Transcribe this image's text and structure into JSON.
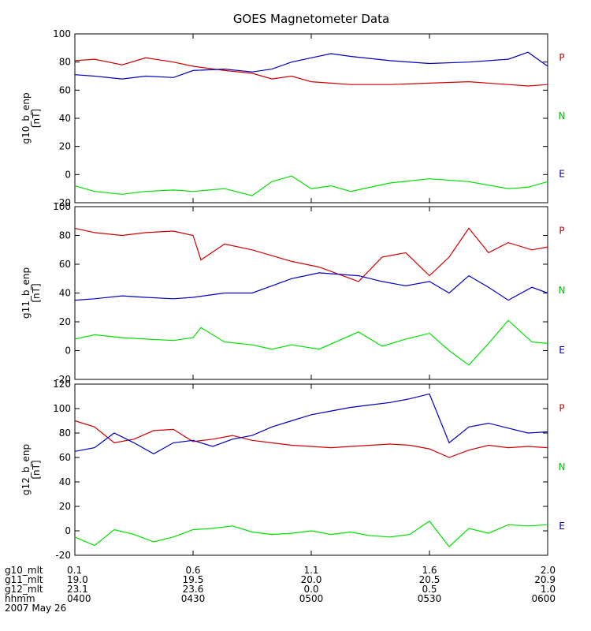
{
  "chart_data": [
    {
      "type": "line",
      "title": "GOES Magnetometer Data",
      "ylabel": "g10_b_enp",
      "yunit": "[nT]",
      "ylim": [
        -20,
        100
      ],
      "yticks": [
        -20,
        0,
        20,
        40,
        60,
        80,
        100
      ],
      "xlim": [
        0,
        120
      ],
      "legend": [
        "P",
        "N",
        "E"
      ],
      "series": [
        {
          "color": "#d00000",
          "x": [
            0,
            5,
            12,
            18,
            25,
            30,
            38,
            45,
            50,
            55,
            60,
            65,
            70,
            80,
            90,
            100,
            110,
            115,
            120
          ],
          "y": [
            81,
            82,
            78,
            83,
            80,
            77,
            74,
            72,
            68,
            70,
            66,
            65,
            64,
            64,
            65,
            66,
            64,
            63,
            64
          ]
        },
        {
          "color": "#0000c0",
          "x": [
            0,
            5,
            12,
            18,
            25,
            30,
            38,
            45,
            50,
            55,
            60,
            65,
            70,
            80,
            90,
            100,
            110,
            115,
            120
          ],
          "y": [
            71,
            70,
            68,
            70,
            69,
            74,
            75,
            73,
            75,
            80,
            83,
            86,
            84,
            81,
            79,
            80,
            82,
            87,
            77
          ]
        },
        {
          "color": "#00e000",
          "x": [
            0,
            5,
            12,
            18,
            25,
            30,
            38,
            45,
            50,
            55,
            60,
            65,
            70,
            80,
            90,
            100,
            110,
            115,
            120
          ],
          "y": [
            -8,
            -12,
            -14,
            -12,
            -11,
            -12,
            -10,
            -15,
            -5,
            -1,
            -10,
            -8,
            -12,
            -6,
            -3,
            -5,
            -10,
            -9,
            -5
          ]
        }
      ]
    },
    {
      "type": "line",
      "ylabel": "g11_b_enp",
      "yunit": "[nT]",
      "ylim": [
        -20,
        100
      ],
      "yticks": [
        -20,
        0,
        20,
        40,
        60,
        80,
        100
      ],
      "xlim": [
        0,
        120
      ],
      "legend": [
        "P",
        "N",
        "E"
      ],
      "series": [
        {
          "color": "#d00000",
          "x": [
            0,
            5,
            12,
            18,
            25,
            30,
            32,
            38,
            45,
            50,
            55,
            62,
            72,
            78,
            84,
            90,
            95,
            100,
            105,
            110,
            116,
            120
          ],
          "y": [
            85,
            82,
            80,
            82,
            83,
            80,
            63,
            74,
            70,
            66,
            62,
            58,
            48,
            65,
            68,
            52,
            65,
            85,
            68,
            75,
            70,
            72
          ]
        },
        {
          "color": "#0000c0",
          "x": [
            0,
            5,
            12,
            18,
            25,
            30,
            38,
            45,
            50,
            55,
            62,
            72,
            78,
            84,
            90,
            95,
            100,
            105,
            110,
            116,
            120
          ],
          "y": [
            35,
            36,
            38,
            37,
            36,
            37,
            40,
            40,
            45,
            50,
            54,
            52,
            48,
            45,
            48,
            40,
            52,
            44,
            35,
            44,
            40
          ]
        },
        {
          "color": "#00e000",
          "x": [
            0,
            5,
            12,
            18,
            25,
            30,
            32,
            38,
            45,
            50,
            55,
            62,
            72,
            78,
            84,
            90,
            95,
            100,
            105,
            110,
            116,
            120
          ],
          "y": [
            8,
            11,
            9,
            8,
            7,
            9,
            16,
            6,
            4,
            1,
            4,
            1,
            13,
            3,
            8,
            12,
            0,
            -10,
            5,
            21,
            6,
            5
          ]
        }
      ]
    },
    {
      "type": "line",
      "ylabel": "g12_b_enp",
      "yunit": "[nT]",
      "ylim": [
        -20,
        120
      ],
      "yticks": [
        -20,
        0,
        20,
        40,
        60,
        80,
        100,
        120
      ],
      "xlim": [
        0,
        120
      ],
      "legend": [
        "P",
        "N",
        "E"
      ],
      "series": [
        {
          "color": "#d00000",
          "x": [
            0,
            5,
            10,
            15,
            20,
            25,
            30,
            35,
            40,
            45,
            50,
            55,
            60,
            65,
            70,
            75,
            80,
            85,
            90,
            95,
            100,
            105,
            110,
            115,
            120
          ],
          "y": [
            90,
            85,
            72,
            75,
            82,
            83,
            73,
            75,
            78,
            74,
            72,
            70,
            69,
            68,
            69,
            70,
            71,
            70,
            67,
            60,
            66,
            70,
            68,
            69,
            68
          ]
        },
        {
          "color": "#0000c0",
          "x": [
            0,
            5,
            10,
            15,
            20,
            25,
            30,
            35,
            40,
            45,
            50,
            55,
            60,
            65,
            70,
            75,
            80,
            85,
            90,
            95,
            100,
            105,
            110,
            115,
            120
          ],
          "y": [
            65,
            68,
            80,
            72,
            63,
            72,
            74,
            69,
            75,
            78,
            85,
            90,
            95,
            98,
            101,
            103,
            105,
            108,
            112,
            72,
            85,
            88,
            84,
            80,
            81
          ]
        },
        {
          "color": "#00e000",
          "x": [
            0,
            5,
            10,
            15,
            20,
            25,
            30,
            35,
            40,
            45,
            50,
            55,
            60,
            65,
            70,
            75,
            80,
            85,
            90,
            95,
            100,
            105,
            110,
            115,
            120
          ],
          "y": [
            -5,
            -12,
            1,
            -3,
            -9,
            -5,
            1,
            2,
            4,
            -1,
            -3,
            -2,
            0,
            -3,
            -1,
            -4,
            -5,
            -3,
            8,
            -13,
            2,
            -2,
            5,
            4,
            5
          ]
        }
      ]
    }
  ],
  "x_axis": {
    "positions": [
      0,
      30,
      60,
      90,
      120
    ],
    "rows": [
      {
        "label": "g10_mlt",
        "values": [
          "0.1",
          "0.6",
          "1.1",
          "1.6",
          "2.0"
        ]
      },
      {
        "label": "g11_mlt",
        "values": [
          "19.0",
          "19.5",
          "20.0",
          "20.5",
          "20.9"
        ]
      },
      {
        "label": "g12_mlt",
        "values": [
          "23.1",
          "23.6",
          "0.0",
          "0.5",
          "1.0"
        ]
      },
      {
        "label": "hhmm",
        "values": [
          "0400",
          "0430",
          "0500",
          "0530",
          "0600"
        ]
      }
    ],
    "date": "2007 May 26"
  }
}
